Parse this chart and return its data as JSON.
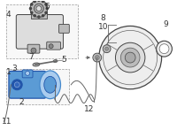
{
  "bg_color": "#ffffff",
  "lc": "#666666",
  "lc_dark": "#444444",
  "blue_fill": "#5b9bd5",
  "blue_light": "#aaccee",
  "blue_dark": "#2255aa",
  "gray_fill": "#dddddd",
  "gray_light": "#eeeeee",
  "gray_mid": "#bbbbbb",
  "box_edge": "#999999",
  "label_color": "#333333",
  "figsize": [
    2.0,
    1.47
  ],
  "dpi": 100
}
